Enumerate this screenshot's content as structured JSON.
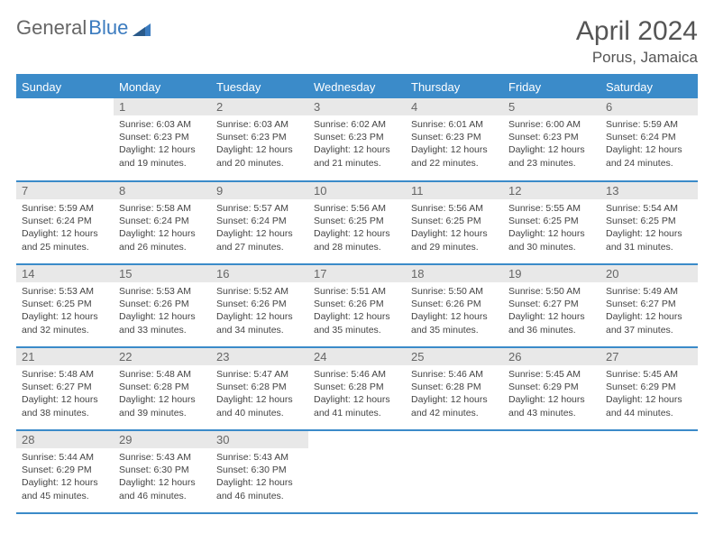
{
  "brand": {
    "part1": "General",
    "part2": "Blue"
  },
  "title": "April 2024",
  "location": "Porus, Jamaica",
  "weekdays": [
    "Sunday",
    "Monday",
    "Tuesday",
    "Wednesday",
    "Thursday",
    "Friday",
    "Saturday"
  ],
  "colors": {
    "header_bg": "#3b8bc9",
    "header_text": "#ffffff",
    "daynum_bg": "#e8e8e8",
    "border": "#3b8bc9",
    "body_text": "#444444",
    "logo_gray": "#666666",
    "logo_blue": "#3b7bbf"
  },
  "layout": {
    "first_weekday_index": 1,
    "days_in_month": 30
  },
  "days": [
    {
      "n": 1,
      "sunrise": "6:03 AM",
      "sunset": "6:23 PM",
      "daylight": "12 hours and 19 minutes."
    },
    {
      "n": 2,
      "sunrise": "6:03 AM",
      "sunset": "6:23 PM",
      "daylight": "12 hours and 20 minutes."
    },
    {
      "n": 3,
      "sunrise": "6:02 AM",
      "sunset": "6:23 PM",
      "daylight": "12 hours and 21 minutes."
    },
    {
      "n": 4,
      "sunrise": "6:01 AM",
      "sunset": "6:23 PM",
      "daylight": "12 hours and 22 minutes."
    },
    {
      "n": 5,
      "sunrise": "6:00 AM",
      "sunset": "6:23 PM",
      "daylight": "12 hours and 23 minutes."
    },
    {
      "n": 6,
      "sunrise": "5:59 AM",
      "sunset": "6:24 PM",
      "daylight": "12 hours and 24 minutes."
    },
    {
      "n": 7,
      "sunrise": "5:59 AM",
      "sunset": "6:24 PM",
      "daylight": "12 hours and 25 minutes."
    },
    {
      "n": 8,
      "sunrise": "5:58 AM",
      "sunset": "6:24 PM",
      "daylight": "12 hours and 26 minutes."
    },
    {
      "n": 9,
      "sunrise": "5:57 AM",
      "sunset": "6:24 PM",
      "daylight": "12 hours and 27 minutes."
    },
    {
      "n": 10,
      "sunrise": "5:56 AM",
      "sunset": "6:25 PM",
      "daylight": "12 hours and 28 minutes."
    },
    {
      "n": 11,
      "sunrise": "5:56 AM",
      "sunset": "6:25 PM",
      "daylight": "12 hours and 29 minutes."
    },
    {
      "n": 12,
      "sunrise": "5:55 AM",
      "sunset": "6:25 PM",
      "daylight": "12 hours and 30 minutes."
    },
    {
      "n": 13,
      "sunrise": "5:54 AM",
      "sunset": "6:25 PM",
      "daylight": "12 hours and 31 minutes."
    },
    {
      "n": 14,
      "sunrise": "5:53 AM",
      "sunset": "6:25 PM",
      "daylight": "12 hours and 32 minutes."
    },
    {
      "n": 15,
      "sunrise": "5:53 AM",
      "sunset": "6:26 PM",
      "daylight": "12 hours and 33 minutes."
    },
    {
      "n": 16,
      "sunrise": "5:52 AM",
      "sunset": "6:26 PM",
      "daylight": "12 hours and 34 minutes."
    },
    {
      "n": 17,
      "sunrise": "5:51 AM",
      "sunset": "6:26 PM",
      "daylight": "12 hours and 35 minutes."
    },
    {
      "n": 18,
      "sunrise": "5:50 AM",
      "sunset": "6:26 PM",
      "daylight": "12 hours and 35 minutes."
    },
    {
      "n": 19,
      "sunrise": "5:50 AM",
      "sunset": "6:27 PM",
      "daylight": "12 hours and 36 minutes."
    },
    {
      "n": 20,
      "sunrise": "5:49 AM",
      "sunset": "6:27 PM",
      "daylight": "12 hours and 37 minutes."
    },
    {
      "n": 21,
      "sunrise": "5:48 AM",
      "sunset": "6:27 PM",
      "daylight": "12 hours and 38 minutes."
    },
    {
      "n": 22,
      "sunrise": "5:48 AM",
      "sunset": "6:28 PM",
      "daylight": "12 hours and 39 minutes."
    },
    {
      "n": 23,
      "sunrise": "5:47 AM",
      "sunset": "6:28 PM",
      "daylight": "12 hours and 40 minutes."
    },
    {
      "n": 24,
      "sunrise": "5:46 AM",
      "sunset": "6:28 PM",
      "daylight": "12 hours and 41 minutes."
    },
    {
      "n": 25,
      "sunrise": "5:46 AM",
      "sunset": "6:28 PM",
      "daylight": "12 hours and 42 minutes."
    },
    {
      "n": 26,
      "sunrise": "5:45 AM",
      "sunset": "6:29 PM",
      "daylight": "12 hours and 43 minutes."
    },
    {
      "n": 27,
      "sunrise": "5:45 AM",
      "sunset": "6:29 PM",
      "daylight": "12 hours and 44 minutes."
    },
    {
      "n": 28,
      "sunrise": "5:44 AM",
      "sunset": "6:29 PM",
      "daylight": "12 hours and 45 minutes."
    },
    {
      "n": 29,
      "sunrise": "5:43 AM",
      "sunset": "6:30 PM",
      "daylight": "12 hours and 46 minutes."
    },
    {
      "n": 30,
      "sunrise": "5:43 AM",
      "sunset": "6:30 PM",
      "daylight": "12 hours and 46 minutes."
    }
  ],
  "labels": {
    "sunrise": "Sunrise:",
    "sunset": "Sunset:",
    "daylight": "Daylight:"
  }
}
